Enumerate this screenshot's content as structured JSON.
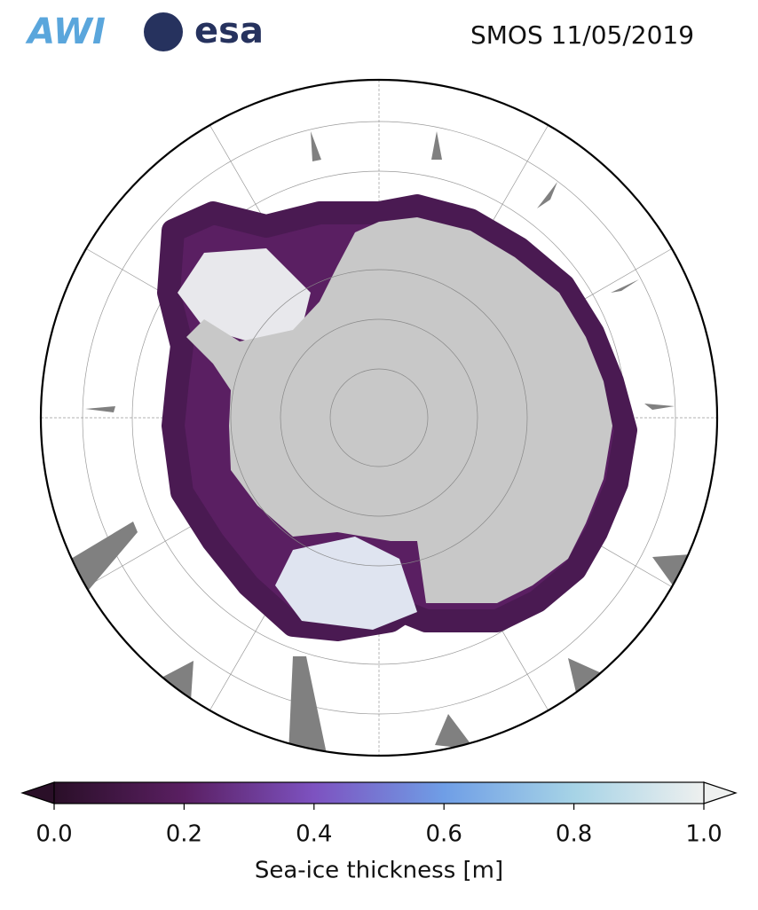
{
  "header": {
    "logos": [
      "AWI",
      "esa"
    ],
    "title": "SMOS 11/05/2019"
  },
  "colorbar": {
    "label": "Sea-ice thickness [m]",
    "range": [
      0,
      1
    ],
    "colors": [
      "#2a0f28",
      "#5a1f62",
      "#7d52c0",
      "#6f9ee6",
      "#a6d3e6",
      "#eef0ef"
    ],
    "ticks": [
      {
        "value": 0,
        "label": "0.0"
      },
      {
        "value": 0.2,
        "label": "0.2"
      },
      {
        "value": 0.4,
        "label": "0.4"
      },
      {
        "value": 0.6,
        "label": "0.6"
      },
      {
        "value": 0.8,
        "label": "0.8"
      },
      {
        "value": 1,
        "label": "1.0"
      }
    ]
  }
}
